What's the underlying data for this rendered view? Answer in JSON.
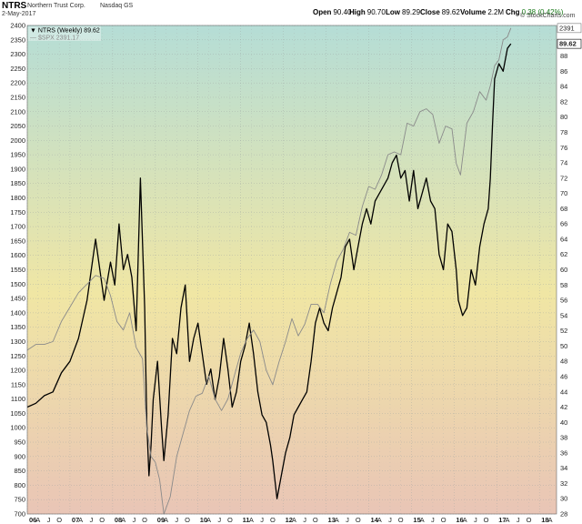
{
  "header": {
    "ticker": "NTRS",
    "company": "Northern Trust Corp.",
    "exchange": "Nasdaq GS",
    "date": "2-May-2017",
    "open_label": "Open",
    "open": "90.40",
    "high_label": "High",
    "high": "90.70",
    "low_label": "Low",
    "low": "89.29",
    "close_label": "Close",
    "close": "89.62",
    "volume_label": "Volume",
    "volume": "2.2M",
    "chg_label": "Chg",
    "chg": "0.38 (0.42%)",
    "brand": "© StockCharts.com"
  },
  "colors": {
    "ntrs": "#000000",
    "spx": "#8a8a8a",
    "bg_top": "#b5ddd6",
    "bg_mid": "#f0e6a4",
    "bg_bottom": "#e9c5b6"
  },
  "chart_data": {
    "type": "line",
    "legend": [
      {
        "label": "▼ NTRS (Weekly) 89.62",
        "color": "#000000"
      },
      {
        "label": "— $SPX 2391.17",
        "color": "#8a8a8a"
      }
    ],
    "legend_position": "top-left",
    "grid": true,
    "left_axis": {
      "min": 700,
      "max": 2400,
      "ticks": [
        700,
        750,
        800,
        850,
        900,
        950,
        1000,
        1050,
        1100,
        1150,
        1200,
        1250,
        1300,
        1350,
        1400,
        1450,
        1500,
        1550,
        1600,
        1650,
        1700,
        1750,
        1800,
        1850,
        1900,
        1950,
        2000,
        2050,
        2100,
        2150,
        2200,
        2250,
        2300,
        2350,
        2400
      ]
    },
    "right_axis": {
      "min": 28,
      "max": 92,
      "ticks": [
        28,
        30,
        32,
        34,
        36,
        38,
        40,
        42,
        44,
        46,
        48,
        50,
        52,
        54,
        56,
        58,
        60,
        62,
        64,
        66,
        68,
        70,
        72,
        74,
        76,
        78,
        80,
        82,
        84,
        86,
        88
      ]
    },
    "x_axis": {
      "start": 2006.0,
      "end": 2018.4,
      "years": [
        "06",
        "07",
        "08",
        "09",
        "10",
        "11",
        "12",
        "13",
        "14",
        "15",
        "16",
        "17",
        "18"
      ],
      "month_labels": [
        "A",
        "J",
        "O"
      ]
    },
    "last_labels": {
      "spx": "2391",
      "ntrs": "89.62"
    },
    "series": [
      {
        "name": "NTRS (Weekly)",
        "axis": "right",
        "color": "#000000",
        "x": [
          2006.0,
          2006.2,
          2006.4,
          2006.6,
          2006.8,
          2007.0,
          2007.2,
          2007.4,
          2007.6,
          2007.8,
          2007.95,
          2008.05,
          2008.15,
          2008.25,
          2008.35,
          2008.45,
          2008.55,
          2008.65,
          2008.75,
          2008.8,
          2008.85,
          2008.9,
          2008.95,
          2009.05,
          2009.15,
          2009.2,
          2009.3,
          2009.4,
          2009.5,
          2009.6,
          2009.7,
          2009.8,
          2009.9,
          2010.0,
          2010.1,
          2010.2,
          2010.3,
          2010.4,
          2010.5,
          2010.6,
          2010.7,
          2010.8,
          2010.9,
          2011.0,
          2011.1,
          2011.2,
          2011.3,
          2011.4,
          2011.5,
          2011.6,
          2011.7,
          2011.75,
          2011.85,
          2011.95,
          2012.05,
          2012.15,
          2012.25,
          2012.35,
          2012.45,
          2012.55,
          2012.65,
          2012.75,
          2012.85,
          2012.95,
          2013.05,
          2013.15,
          2013.25,
          2013.35,
          2013.45,
          2013.55,
          2013.65,
          2013.75,
          2013.85,
          2013.95,
          2014.05,
          2014.15,
          2014.25,
          2014.35,
          2014.45,
          2014.55,
          2014.65,
          2014.75,
          2014.85,
          2014.95,
          2015.05,
          2015.15,
          2015.25,
          2015.35,
          2015.45,
          2015.55,
          2015.65,
          2015.75,
          2015.85,
          2015.95,
          2016.05,
          2016.1,
          2016.2,
          2016.3,
          2016.4,
          2016.5,
          2016.6,
          2016.7,
          2016.8,
          2016.85,
          2016.9,
          2016.95,
          2017.05,
          2017.15,
          2017.25,
          2017.33
        ],
        "y": [
          42.0,
          42.5,
          43.5,
          44.0,
          46.5,
          48.0,
          51.0,
          56.0,
          64.0,
          56.0,
          61.0,
          58.0,
          66.0,
          60.0,
          62.0,
          59.0,
          52.0,
          72.0,
          55.0,
          40.0,
          33.0,
          37.0,
          43.0,
          48.0,
          39.0,
          35.0,
          41.0,
          51.0,
          49.0,
          55.0,
          58.0,
          48.0,
          51.0,
          53.0,
          49.0,
          45.0,
          47.0,
          43.0,
          46.0,
          51.0,
          47.0,
          42.0,
          44.0,
          48.0,
          50.0,
          53.0,
          49.0,
          44.0,
          41.0,
          40.0,
          37.0,
          35.0,
          30.0,
          33.0,
          36.0,
          38.0,
          41.0,
          42.0,
          43.0,
          44.0,
          48.0,
          53.0,
          55.0,
          53.0,
          52.0,
          55.0,
          57.0,
          59.0,
          63.0,
          64.0,
          60.0,
          63.0,
          66.0,
          68.0,
          66.0,
          69.0,
          70.0,
          71.0,
          72.0,
          74.0,
          75.0,
          72.0,
          73.0,
          69.0,
          73.0,
          68.0,
          70.0,
          72.0,
          69.0,
          68.0,
          62.0,
          60.0,
          66.0,
          65.0,
          60.0,
          56.0,
          54.0,
          55.0,
          60.0,
          58.0,
          63.0,
          66.0,
          68.0,
          72.0,
          79.0,
          85.0,
          87.0,
          86.0,
          89.0,
          89.6
        ]
      },
      {
        "name": "$SPX",
        "axis": "left",
        "color": "#8a8a8a",
        "x": [
          2006.0,
          2006.2,
          2006.4,
          2006.6,
          2006.8,
          2007.0,
          2007.2,
          2007.4,
          2007.6,
          2007.8,
          2007.95,
          2008.1,
          2008.25,
          2008.4,
          2008.55,
          2008.7,
          2008.8,
          2008.9,
          2009.0,
          2009.1,
          2009.2,
          2009.35,
          2009.5,
          2009.65,
          2009.8,
          2009.95,
          2010.1,
          2010.25,
          2010.4,
          2010.55,
          2010.7,
          2010.85,
          2011.0,
          2011.15,
          2011.3,
          2011.45,
          2011.6,
          2011.75,
          2011.9,
          2012.05,
          2012.2,
          2012.35,
          2012.5,
          2012.65,
          2012.8,
          2012.95,
          2013.1,
          2013.25,
          2013.4,
          2013.55,
          2013.7,
          2013.85,
          2014.0,
          2014.15,
          2014.3,
          2014.45,
          2014.6,
          2014.75,
          2014.9,
          2015.05,
          2015.2,
          2015.35,
          2015.5,
          2015.65,
          2015.8,
          2015.95,
          2016.05,
          2016.15,
          2016.3,
          2016.45,
          2016.6,
          2016.75,
          2016.85,
          2016.95,
          2017.05,
          2017.15,
          2017.25,
          2017.33
        ],
        "y": [
          1270,
          1290,
          1290,
          1300,
          1370,
          1420,
          1470,
          1500,
          1530,
          1520,
          1460,
          1370,
          1340,
          1400,
          1280,
          1240,
          1000,
          900,
          880,
          820,
          700,
          760,
          900,
          980,
          1060,
          1110,
          1120,
          1180,
          1100,
          1060,
          1100,
          1180,
          1260,
          1310,
          1340,
          1300,
          1200,
          1150,
          1230,
          1300,
          1380,
          1320,
          1360,
          1430,
          1430,
          1400,
          1500,
          1580,
          1620,
          1680,
          1670,
          1770,
          1840,
          1830,
          1880,
          1950,
          1960,
          1950,
          2060,
          2050,
          2100,
          2110,
          2090,
          1990,
          2050,
          2040,
          1920,
          1880,
          2060,
          2100,
          2170,
          2140,
          2190,
          2260,
          2280,
          2350,
          2360,
          2391
        ]
      }
    ]
  }
}
